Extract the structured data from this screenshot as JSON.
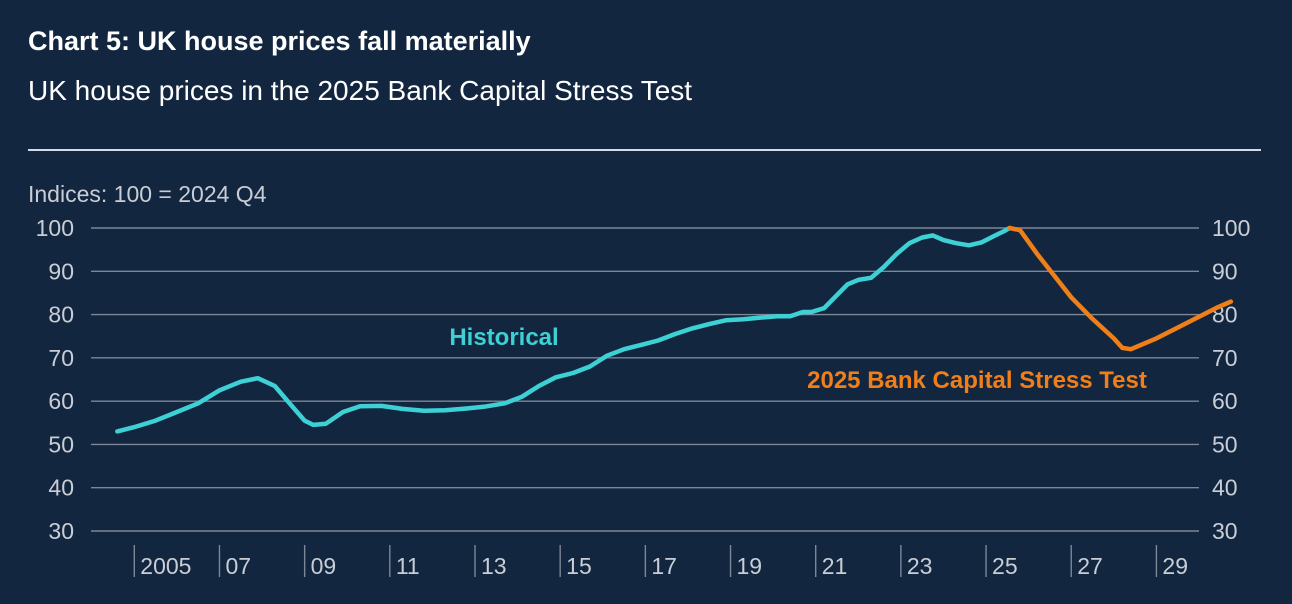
{
  "header": {
    "title": "Chart 5: UK house prices fall materially",
    "subtitle": "UK house prices in the 2025 Bank Capital Stress Test"
  },
  "colors": {
    "background": "#13263f",
    "historical": "#3dd0d4",
    "stress": "#f07f1a",
    "grid": "#7c8797",
    "text": "#c9ced6"
  },
  "chart_data": {
    "type": "line",
    "units_label": "Indices: 100 = 2024 Q4",
    "ylim": [
      30,
      100
    ],
    "y_ticks": [
      100,
      90,
      80,
      70,
      60,
      50,
      40,
      30
    ],
    "xlim": [
      2004.5,
      2030
    ],
    "x_tick_labels": [
      {
        "year": 2005,
        "label": "2005"
      },
      {
        "year": 2007,
        "label": "07"
      },
      {
        "year": 2009,
        "label": "09"
      },
      {
        "year": 2011,
        "label": "11"
      },
      {
        "year": 2013,
        "label": "13"
      },
      {
        "year": 2015,
        "label": "15"
      },
      {
        "year": 2017,
        "label": "17"
      },
      {
        "year": 2019,
        "label": "19"
      },
      {
        "year": 2021,
        "label": "21"
      },
      {
        "year": 2023,
        "label": "23"
      },
      {
        "year": 2025,
        "label": "25"
      },
      {
        "year": 2027,
        "label": "27"
      },
      {
        "year": 2029,
        "label": "29"
      }
    ],
    "grid": true,
    "series": [
      {
        "name": "Historical",
        "points": [
          [
            2004.6,
            53
          ],
          [
            2005.0,
            54
          ],
          [
            2005.5,
            55.5
          ],
          [
            2006.0,
            57.5
          ],
          [
            2006.5,
            59.5
          ],
          [
            2007.0,
            62.5
          ],
          [
            2007.5,
            64.5
          ],
          [
            2007.9,
            65.3
          ],
          [
            2008.3,
            63.5
          ],
          [
            2008.6,
            60
          ],
          [
            2009.0,
            55.5
          ],
          [
            2009.2,
            54.5
          ],
          [
            2009.5,
            54.8
          ],
          [
            2009.9,
            57.5
          ],
          [
            2010.3,
            58.8
          ],
          [
            2010.8,
            58.9
          ],
          [
            2011.3,
            58.2
          ],
          [
            2011.8,
            57.8
          ],
          [
            2012.3,
            57.9
          ],
          [
            2012.8,
            58.3
          ],
          [
            2013.2,
            58.7
          ],
          [
            2013.7,
            59.5
          ],
          [
            2014.1,
            61
          ],
          [
            2014.5,
            63.5
          ],
          [
            2014.9,
            65.5
          ],
          [
            2015.3,
            66.5
          ],
          [
            2015.7,
            68
          ],
          [
            2016.1,
            70.5
          ],
          [
            2016.5,
            72
          ],
          [
            2016.9,
            73
          ],
          [
            2017.3,
            74
          ],
          [
            2017.7,
            75.5
          ],
          [
            2018.1,
            76.8
          ],
          [
            2018.5,
            77.8
          ],
          [
            2018.9,
            78.7
          ],
          [
            2019.3,
            78.9
          ],
          [
            2019.7,
            79.3
          ],
          [
            2020.1,
            79.6
          ],
          [
            2020.4,
            79.6
          ],
          [
            2020.7,
            80.6
          ],
          [
            2020.9,
            80.6
          ],
          [
            2021.2,
            81.5
          ],
          [
            2021.5,
            84.5
          ],
          [
            2021.75,
            87
          ],
          [
            2022.0,
            88
          ],
          [
            2022.3,
            88.5
          ],
          [
            2022.6,
            91
          ],
          [
            2022.9,
            94
          ],
          [
            2023.2,
            96.5
          ],
          [
            2023.5,
            97.8
          ],
          [
            2023.75,
            98.3
          ],
          [
            2024.0,
            97.2
          ],
          [
            2024.3,
            96.5
          ],
          [
            2024.6,
            96
          ],
          [
            2024.9,
            96.7
          ],
          [
            2025.2,
            98.2
          ],
          [
            2025.45,
            99.4
          ],
          [
            2025.55,
            100
          ]
        ]
      },
      {
        "name": "2025 Bank Capital Stress Test",
        "points": [
          [
            2025.55,
            100
          ],
          [
            2025.8,
            99.5
          ],
          [
            2026.2,
            94
          ],
          [
            2026.6,
            89
          ],
          [
            2027.0,
            84
          ],
          [
            2027.5,
            79
          ],
          [
            2028.0,
            74.5
          ],
          [
            2028.2,
            72.3
          ],
          [
            2028.4,
            72.0
          ],
          [
            2029.0,
            74.5
          ],
          [
            2029.5,
            77
          ],
          [
            2030.0,
            79.5
          ],
          [
            2030.4,
            81.5
          ],
          [
            2030.75,
            83
          ]
        ]
      }
    ]
  }
}
